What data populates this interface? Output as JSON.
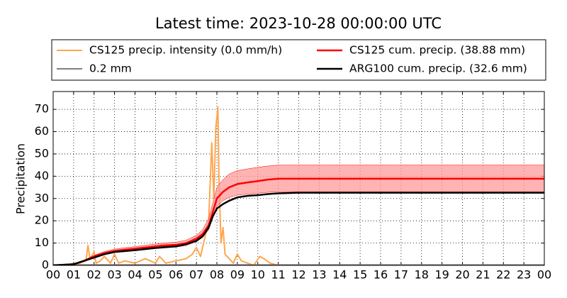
{
  "chart_data": {
    "type": "line",
    "title": "Latest time: 2023-10-28 00:00:00 UTC",
    "y_label": "Precipitation",
    "xlim": [
      0,
      24
    ],
    "ylim": [
      0,
      78
    ],
    "xticks": [
      {
        "value": 0,
        "label": "00"
      },
      {
        "value": 1,
        "label": "01"
      },
      {
        "value": 2,
        "label": "02"
      },
      {
        "value": 3,
        "label": "03"
      },
      {
        "value": 4,
        "label": "04"
      },
      {
        "value": 5,
        "label": "05"
      },
      {
        "value": 6,
        "label": "06"
      },
      {
        "value": 7,
        "label": "07"
      },
      {
        "value": 8,
        "label": "08"
      },
      {
        "value": 9,
        "label": "09"
      },
      {
        "value": 10,
        "label": "10"
      },
      {
        "value": 11,
        "label": "11"
      },
      {
        "value": 12,
        "label": "12"
      },
      {
        "value": 13,
        "label": "13"
      },
      {
        "value": 14,
        "label": "14"
      },
      {
        "value": 15,
        "label": "15"
      },
      {
        "value": 16,
        "label": "16"
      },
      {
        "value": 17,
        "label": "17"
      },
      {
        "value": 18,
        "label": "18"
      },
      {
        "value": 19,
        "label": "19"
      },
      {
        "value": 20,
        "label": "20"
      },
      {
        "value": 21,
        "label": "21"
      },
      {
        "value": 22,
        "label": "22"
      },
      {
        "value": 23,
        "label": "23"
      },
      {
        "value": 24,
        "label": "00"
      }
    ],
    "yticks": [
      0,
      10,
      20,
      30,
      40,
      50,
      60,
      70
    ],
    "grid": true,
    "series": [
      {
        "name": "CS125 precip. intensity (0.0 mm/h)",
        "color": "#ffa64d",
        "width": 2,
        "x": [
          0,
          1,
          1.6,
          1.7,
          1.8,
          2.0,
          2.1,
          2.3,
          2.5,
          2.8,
          3.0,
          3.2,
          3.5,
          4,
          4.5,
          5,
          5.2,
          5.5,
          6,
          6.5,
          6.8,
          7,
          7.2,
          7.4,
          7.6,
          7.75,
          7.85,
          7.95,
          8.05,
          8.1,
          8.2,
          8.3,
          8.4,
          8.6,
          8.8,
          9.0,
          9.2,
          9.5,
          9.8,
          10.1,
          10.3,
          10.6,
          11,
          24
        ],
        "values": [
          0,
          0,
          2,
          9,
          3,
          6,
          1,
          2,
          4,
          1,
          5,
          1,
          2,
          1,
          3,
          1,
          4,
          1,
          2,
          3,
          5,
          8,
          4,
          12,
          20,
          55,
          30,
          62,
          71,
          40,
          10,
          17,
          5,
          3,
          1,
          5,
          2,
          1,
          0,
          4,
          3,
          1,
          0,
          0
        ]
      },
      {
        "name": "0.2 mm",
        "color": "#808080",
        "width": 2,
        "x": [
          0,
          24
        ],
        "values": [
          0.2,
          0.2
        ]
      },
      {
        "name": "CS125 cum. precip. (38.88 mm)",
        "color": "#ff0000",
        "width": 2.5,
        "band_color": "#ff9a9a",
        "x": [
          0,
          1,
          1.5,
          2,
          2.5,
          3,
          3.5,
          4,
          4.5,
          5,
          5.5,
          6,
          6.5,
          7,
          7.3,
          7.6,
          7.8,
          8,
          8.3,
          8.6,
          9,
          9.5,
          10,
          10.5,
          11,
          12,
          24
        ],
        "values": [
          0,
          0.5,
          2,
          4,
          5.5,
          6.5,
          7,
          7.5,
          8,
          8.5,
          9,
          9.2,
          10,
          12,
          14,
          18,
          24,
          30,
          33,
          35,
          36.5,
          37.2,
          37.8,
          38.5,
          38.88,
          38.88,
          38.88
        ],
        "band_lower": [
          0,
          0.4,
          1.8,
          3.5,
          4.8,
          5.8,
          6.2,
          6.7,
          7.2,
          7.6,
          8,
          8.2,
          8.9,
          10.7,
          12.5,
          16,
          21.5,
          26.5,
          29,
          30.5,
          31.5,
          32,
          32.4,
          32.8,
          33,
          33,
          33
        ],
        "band_upper": [
          0,
          0.6,
          2.3,
          4.5,
          6.2,
          7.3,
          7.9,
          8.4,
          9,
          9.6,
          10.1,
          10.4,
          11.3,
          13.5,
          16,
          21,
          28,
          35,
          38.5,
          41,
          42.5,
          43.3,
          44,
          44.6,
          45,
          45,
          45
        ]
      },
      {
        "name": "ARG100 cum. precip. (32.6 mm)",
        "color": "#000000",
        "width": 2.5,
        "x": [
          0,
          1,
          1.5,
          2,
          2.5,
          3,
          4,
          5,
          6,
          6.5,
          7,
          7.3,
          7.6,
          7.8,
          8,
          8.3,
          8.6,
          9,
          9.5,
          10,
          10.5,
          11,
          12,
          24
        ],
        "values": [
          0,
          0.5,
          2,
          3.5,
          5,
          6,
          6.8,
          7.8,
          8.5,
          9.5,
          11,
          13,
          17,
          22,
          25.5,
          27.5,
          29,
          30.5,
          31.2,
          31.5,
          32,
          32.3,
          32.6,
          32.6
        ]
      }
    ]
  }
}
